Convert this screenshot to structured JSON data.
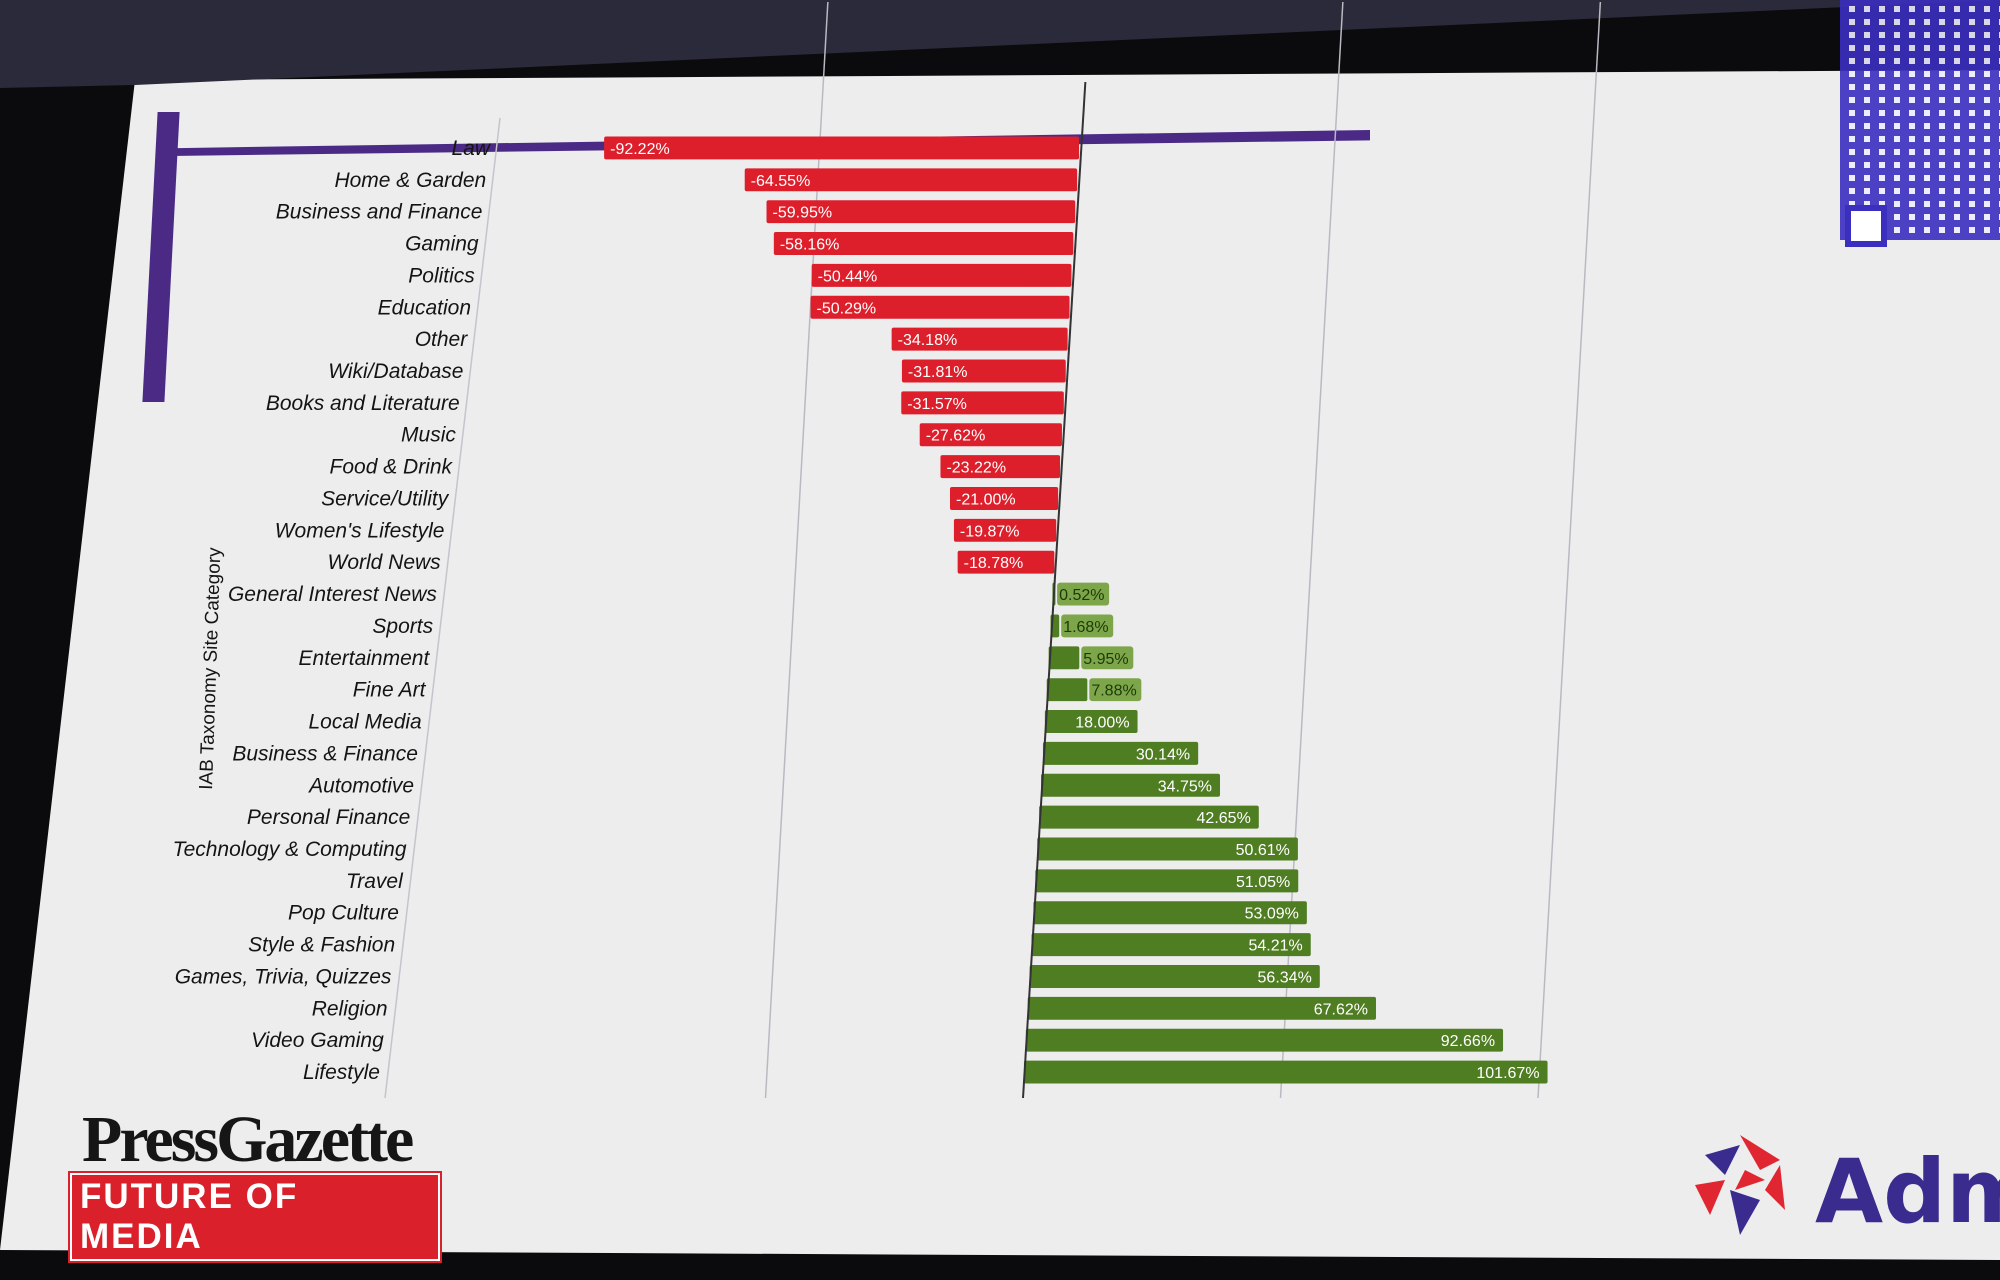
{
  "chart_data": {
    "type": "bar",
    "orientation": "horizontal",
    "ylabel": "IAB Taxonomy Site Category",
    "xlabel": "",
    "xlim": [
      -100,
      105
    ],
    "grid": true,
    "categories": [
      "Law",
      "Home & Garden",
      "Business and Finance",
      "Gaming",
      "Politics",
      "Education",
      "Other",
      "Wiki/Database",
      "Books and Literature",
      "Music",
      "Food & Drink",
      "Service/Utility",
      "Women's Lifestyle",
      "World News",
      "General Interest News",
      "Sports",
      "Entertainment",
      "Fine Art",
      "Local Media",
      "Business & Finance",
      "Automotive",
      "Personal Finance",
      "Technology & Computing",
      "Travel",
      "Pop Culture",
      "Style & Fashion",
      "Games, Trivia, Quizzes",
      "Religion",
      "Video Gaming",
      "Lifestyle"
    ],
    "values": [
      -92.22,
      -64.55,
      -59.95,
      -58.16,
      -50.44,
      -50.29,
      -34.18,
      -31.81,
      -31.57,
      -27.62,
      -23.22,
      -21.0,
      -19.87,
      -18.78,
      0.52,
      1.68,
      5.95,
      7.88,
      18.0,
      30.14,
      34.75,
      42.65,
      50.61,
      51.05,
      53.09,
      54.21,
      56.34,
      67.62,
      92.66,
      101.67
    ],
    "value_labels": [
      "-92.22%",
      "-64.55%",
      "-59.95%",
      "-58.16%",
      "-50.44%",
      "-50.29%",
      "-34.18%",
      "-31.81%",
      "-31.57%",
      "-27.62%",
      "-23.22%",
      "-21.00%",
      "-19.87%",
      "-18.78%",
      "0.52%",
      "1.68%",
      "5.95%",
      "7.88%",
      "18.00%",
      "30.14%",
      "34.75%",
      "42.65%",
      "50.61%",
      "51.05%",
      "53.09%",
      "54.21%",
      "56.34%",
      "67.62%",
      "92.66%",
      "101.67%"
    ],
    "colors": {
      "negative": "#dd1f2c",
      "positive": "#4f7d21"
    }
  },
  "logos": {
    "press_gazette": {
      "name": "PressGazette",
      "tagline": "FUTURE OF MEDIA"
    },
    "partner_partial": "Adm"
  },
  "colors": {
    "accent_purple": "#4b2a86",
    "qr": "#3b2fc0"
  }
}
